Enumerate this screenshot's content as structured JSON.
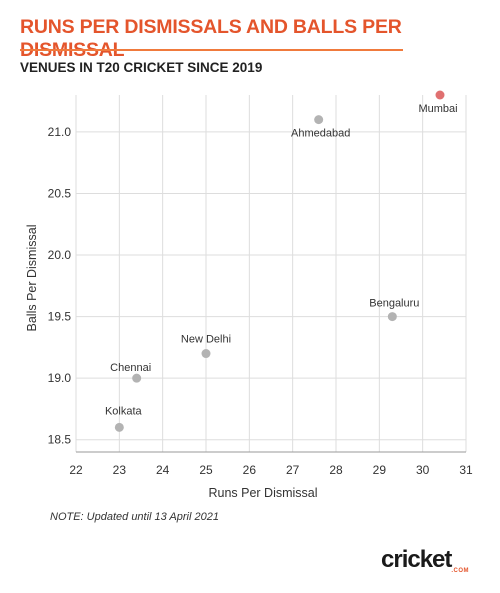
{
  "header": {
    "title": "RUNS PER DISMISSALS AND BALLS PER DISMISSAL",
    "subtitle": "VENUES IN T20 CRICKET SINCE 2019"
  },
  "note": "NOTE: Updated until 13 April 2021",
  "logo": {
    "text": "cricket",
    "sub": ".COM"
  },
  "colors": {
    "accent": "#e4552c",
    "point": "#b3b3b3",
    "highlight": "#e07070",
    "grid": "#dddddd"
  },
  "chart_data": {
    "type": "scatter",
    "xlabel": "Runs Per Dismissal",
    "ylabel": "Balls Per Dismissal",
    "xlim": [
      22,
      31
    ],
    "ylim": [
      18.4,
      21.3
    ],
    "xticks": [
      22,
      23,
      24,
      25,
      26,
      27,
      28,
      29,
      30,
      31
    ],
    "yticks": [
      18.5,
      19.0,
      19.5,
      20.0,
      20.5,
      21.0
    ],
    "grid": true,
    "points": [
      {
        "label": "Mumbai",
        "x": 30.4,
        "y": 21.3,
        "highlight": true
      },
      {
        "label": "Ahmedabad",
        "x": 27.6,
        "y": 21.1,
        "highlight": false
      },
      {
        "label": "Bengaluru",
        "x": 29.3,
        "y": 19.5,
        "highlight": false
      },
      {
        "label": "New Delhi",
        "x": 25.0,
        "y": 19.2,
        "highlight": false
      },
      {
        "label": "Chennai",
        "x": 23.4,
        "y": 19.0,
        "highlight": false
      },
      {
        "label": "Kolkata",
        "x": 23.0,
        "y": 18.6,
        "highlight": false
      }
    ]
  }
}
